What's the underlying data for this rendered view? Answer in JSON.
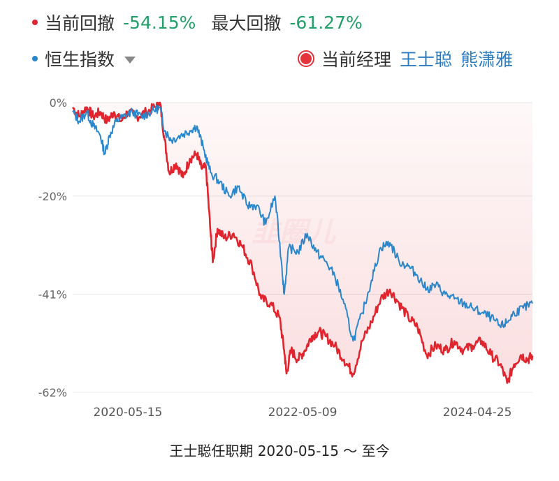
{
  "legend": {
    "current_drawdown_label": "当前回撤",
    "current_drawdown_value": "-54.15%",
    "max_drawdown_label": "最大回撤",
    "max_drawdown_value": "-61.27%",
    "index_label": "恒生指数",
    "manager_label": "当前经理",
    "managers": [
      "王士聪",
      "熊潇雅"
    ]
  },
  "colors": {
    "fund": "#e0252e",
    "index": "#2a87cc",
    "green": "#21a06a",
    "manager": "#2a7bbf"
  },
  "watermark": "韭圈儿",
  "footer": "王士聪任职期 2020-05-15 ～ 至今",
  "chart_data": {
    "type": "line",
    "title": "",
    "xlabel": "",
    "ylabel": "",
    "ylim": [
      -62,
      0
    ],
    "y_ticks": [
      0,
      -20,
      -41,
      -62
    ],
    "y_tick_labels": [
      "0%",
      "-20%",
      "-41%",
      "-62%"
    ],
    "x_ticks": [
      0.12,
      0.5,
      0.88
    ],
    "x_tick_labels": [
      "2020-05-15",
      "2022-05-09",
      "2024-04-25"
    ],
    "series": [
      {
        "name": "当前回撤",
        "points": [
          [
            0.0,
            -1
          ],
          [
            0.015,
            -3
          ],
          [
            0.03,
            -1
          ],
          [
            0.045,
            -3
          ],
          [
            0.06,
            -2
          ],
          [
            0.075,
            -4
          ],
          [
            0.09,
            -2
          ],
          [
            0.105,
            -4
          ],
          [
            0.12,
            -2
          ],
          [
            0.14,
            -3
          ],
          [
            0.16,
            -2
          ],
          [
            0.18,
            -1
          ],
          [
            0.19,
            0
          ],
          [
            0.2,
            -8
          ],
          [
            0.21,
            -15
          ],
          [
            0.225,
            -13
          ],
          [
            0.24,
            -16
          ],
          [
            0.255,
            -12
          ],
          [
            0.27,
            -11
          ],
          [
            0.28,
            -14
          ],
          [
            0.29,
            -14
          ],
          [
            0.3,
            -28
          ],
          [
            0.305,
            -34
          ],
          [
            0.315,
            -27
          ],
          [
            0.33,
            -29
          ],
          [
            0.35,
            -28
          ],
          [
            0.37,
            -31
          ],
          [
            0.39,
            -35
          ],
          [
            0.41,
            -42
          ],
          [
            0.43,
            -43
          ],
          [
            0.45,
            -46
          ],
          [
            0.46,
            -53
          ],
          [
            0.465,
            -58
          ],
          [
            0.475,
            -53
          ],
          [
            0.49,
            -55
          ],
          [
            0.505,
            -53
          ],
          [
            0.52,
            -50
          ],
          [
            0.535,
            -49
          ],
          [
            0.55,
            -50
          ],
          [
            0.57,
            -52
          ],
          [
            0.59,
            -55
          ],
          [
            0.61,
            -58
          ],
          [
            0.63,
            -51
          ],
          [
            0.65,
            -47
          ],
          [
            0.67,
            -42
          ],
          [
            0.69,
            -40
          ],
          [
            0.71,
            -43
          ],
          [
            0.73,
            -46
          ],
          [
            0.75,
            -48
          ],
          [
            0.77,
            -54
          ],
          [
            0.79,
            -52
          ],
          [
            0.81,
            -53
          ],
          [
            0.83,
            -51
          ],
          [
            0.85,
            -53
          ],
          [
            0.87,
            -52
          ],
          [
            0.89,
            -51
          ],
          [
            0.91,
            -54
          ],
          [
            0.93,
            -56
          ],
          [
            0.945,
            -60
          ],
          [
            0.96,
            -56
          ],
          [
            0.975,
            -54
          ],
          [
            0.99,
            -55
          ],
          [
            1.0,
            -54.15
          ]
        ]
      },
      {
        "name": "恒生指数",
        "points": [
          [
            0.0,
            -2
          ],
          [
            0.015,
            -4
          ],
          [
            0.03,
            -2
          ],
          [
            0.045,
            -5
          ],
          [
            0.06,
            -7
          ],
          [
            0.07,
            -11
          ],
          [
            0.08,
            -7
          ],
          [
            0.095,
            -4
          ],
          [
            0.11,
            -3
          ],
          [
            0.13,
            -2
          ],
          [
            0.15,
            -3
          ],
          [
            0.17,
            -2
          ],
          [
            0.19,
            -1
          ],
          [
            0.2,
            -6
          ],
          [
            0.215,
            -8
          ],
          [
            0.235,
            -7
          ],
          [
            0.255,
            -6
          ],
          [
            0.27,
            -5
          ],
          [
            0.285,
            -10
          ],
          [
            0.3,
            -15
          ],
          [
            0.32,
            -17
          ],
          [
            0.34,
            -20
          ],
          [
            0.36,
            -18
          ],
          [
            0.38,
            -22
          ],
          [
            0.4,
            -22
          ],
          [
            0.42,
            -26
          ],
          [
            0.44,
            -20
          ],
          [
            0.455,
            -35
          ],
          [
            0.46,
            -41
          ],
          [
            0.47,
            -31
          ],
          [
            0.49,
            -32
          ],
          [
            0.51,
            -28
          ],
          [
            0.53,
            -32
          ],
          [
            0.55,
            -34
          ],
          [
            0.57,
            -37
          ],
          [
            0.59,
            -43
          ],
          [
            0.61,
            -51
          ],
          [
            0.63,
            -45
          ],
          [
            0.65,
            -38
          ],
          [
            0.67,
            -31
          ],
          [
            0.69,
            -30
          ],
          [
            0.71,
            -34
          ],
          [
            0.73,
            -35
          ],
          [
            0.75,
            -37
          ],
          [
            0.77,
            -40
          ],
          [
            0.79,
            -39
          ],
          [
            0.81,
            -41
          ],
          [
            0.83,
            -42
          ],
          [
            0.85,
            -43
          ],
          [
            0.87,
            -44
          ],
          [
            0.89,
            -45
          ],
          [
            0.91,
            -46
          ],
          [
            0.93,
            -48
          ],
          [
            0.945,
            -47
          ],
          [
            0.96,
            -45
          ],
          [
            0.98,
            -44
          ],
          [
            1.0,
            -43
          ]
        ]
      }
    ]
  }
}
